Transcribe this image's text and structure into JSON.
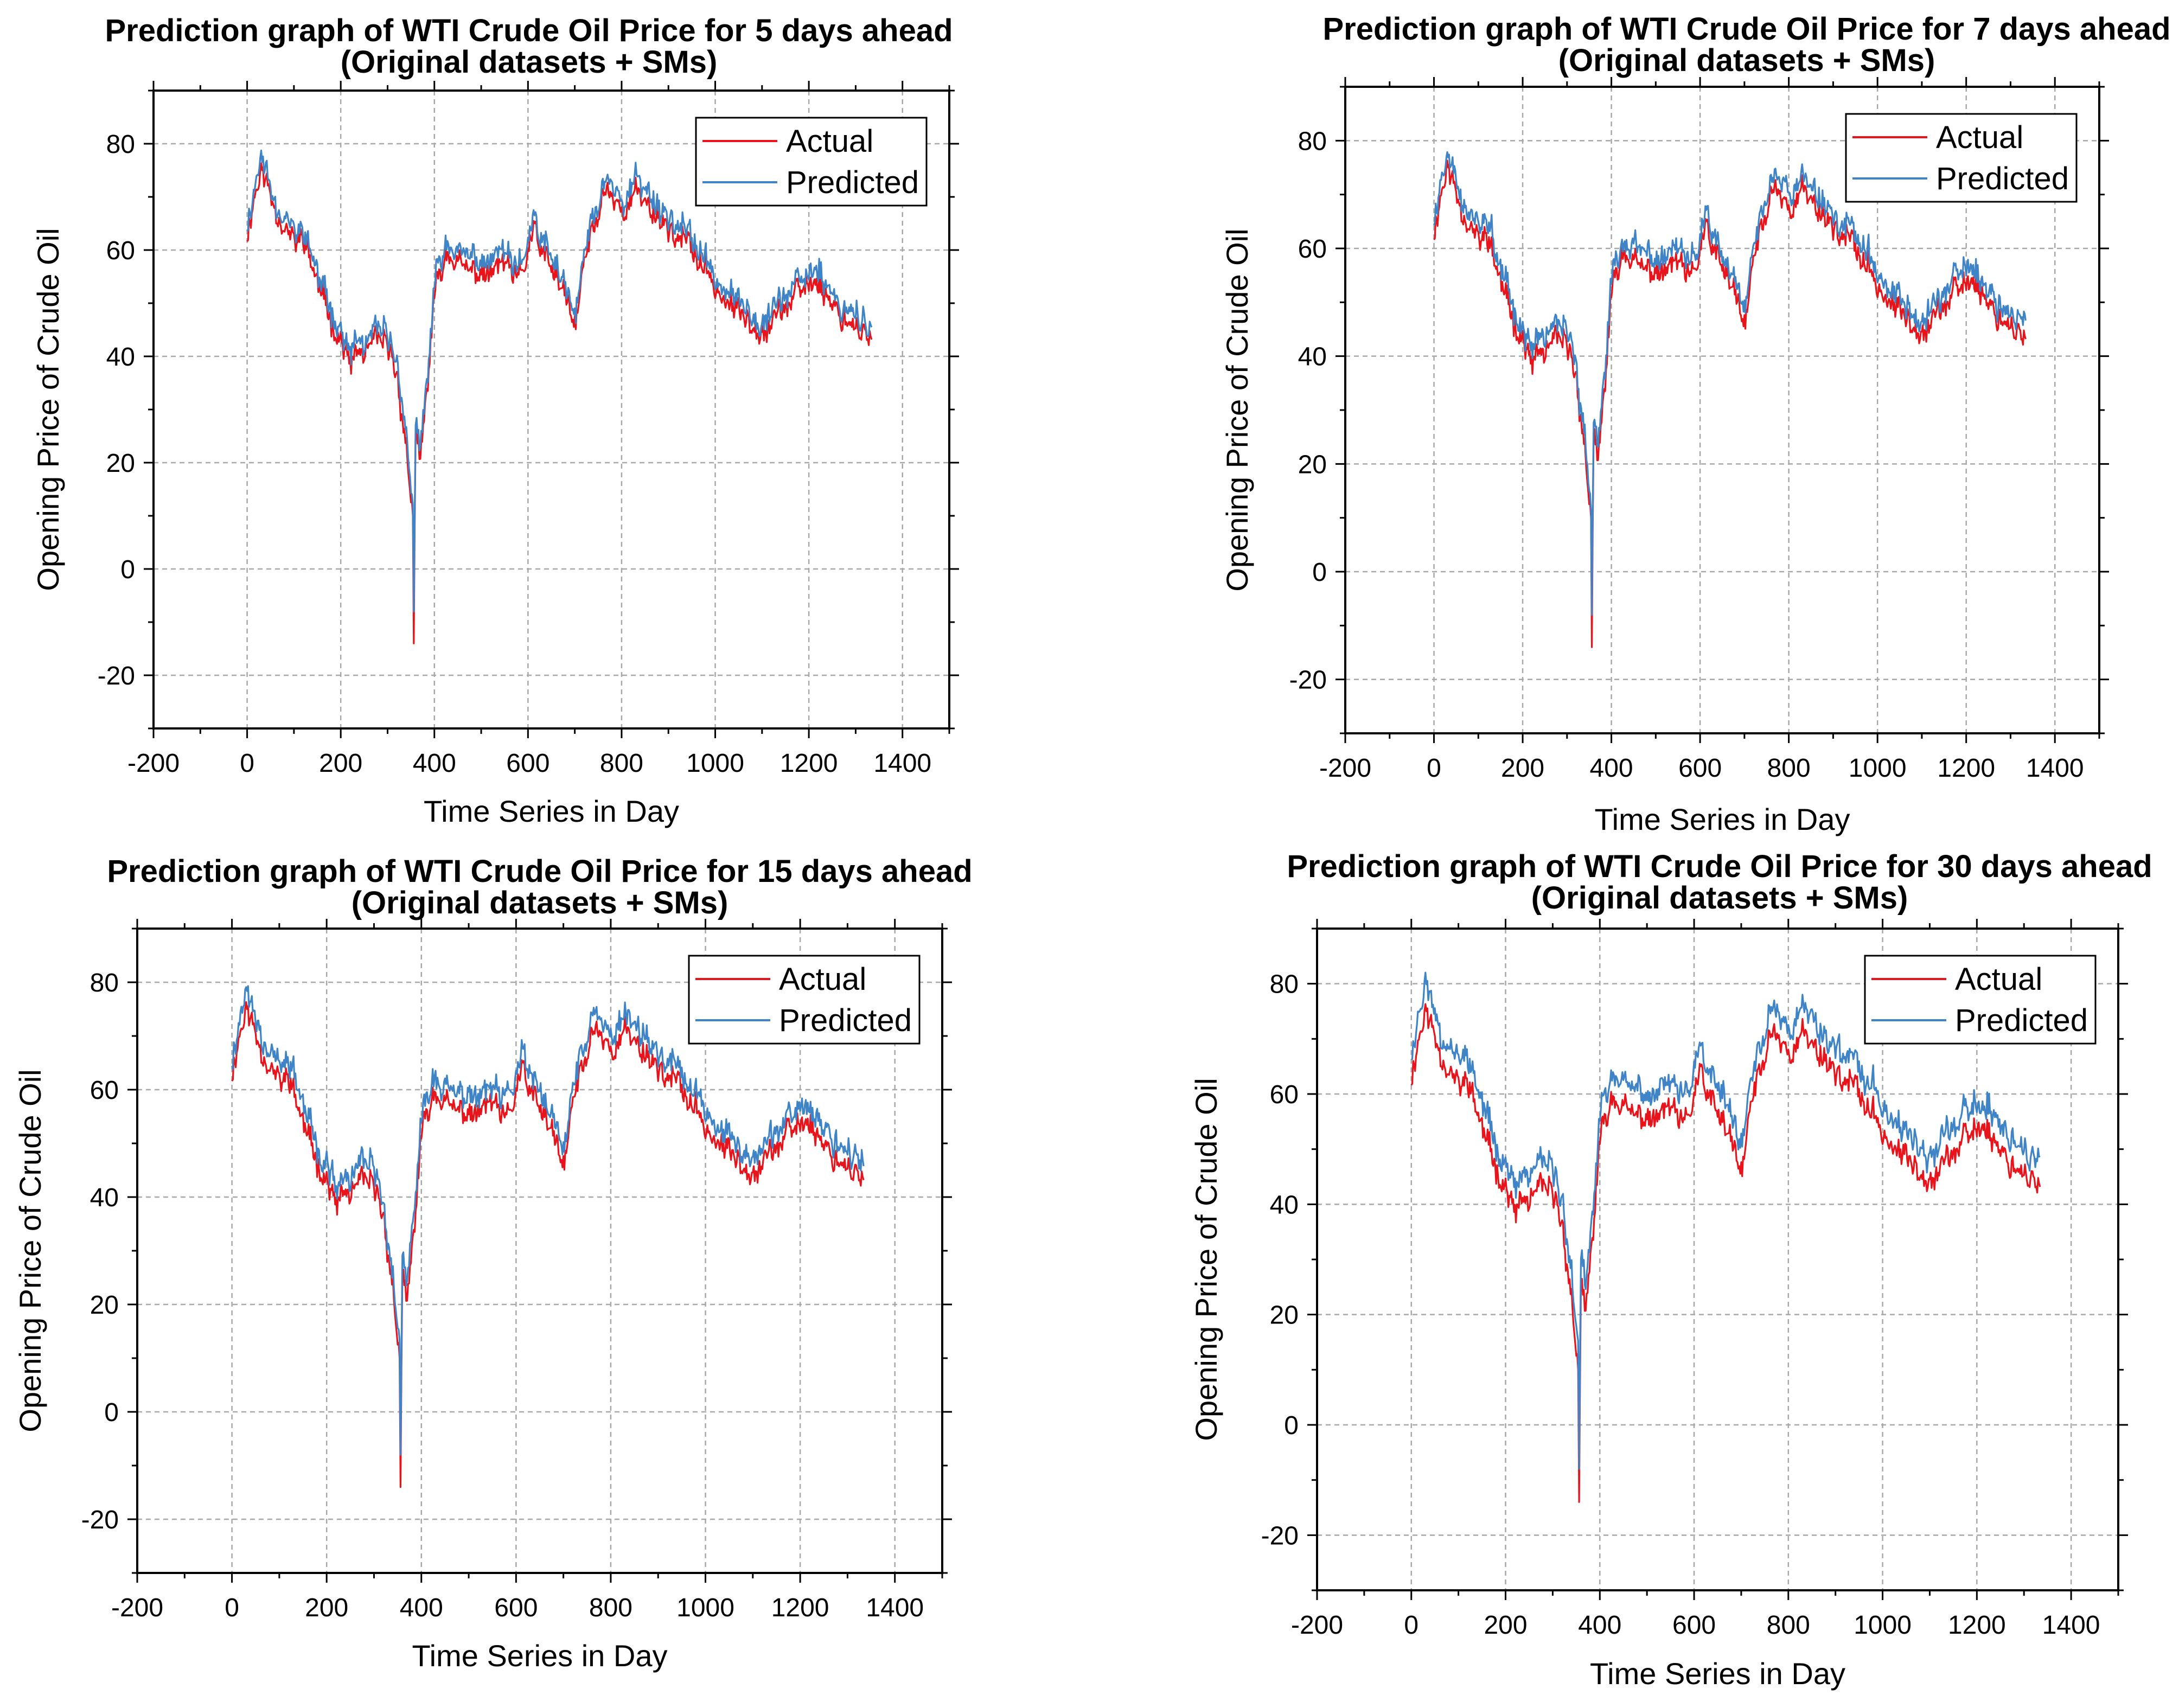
{
  "figure": "WTI crude oil price prediction results, four horizons",
  "colors": {
    "actual": "#e8141c",
    "predicted": "#3f84c6",
    "grid": "#a8a8a8",
    "axis": "#000000"
  },
  "chart_data": [
    {
      "type": "line",
      "title": "Prediction graph of WTI Crude Oil Price for 5 days ahead",
      "subtitle": "(Original datasets + SMs)",
      "xlabel": "Time Series in Day",
      "ylabel": "Opening Price of Crude Oil",
      "xlim": [
        -200,
        1500
      ],
      "ylim": [
        -30,
        90
      ],
      "xticks": [
        -200,
        0,
        200,
        400,
        600,
        800,
        1000,
        1200,
        1400
      ],
      "yticks": [
        -20,
        0,
        20,
        40,
        60,
        80
      ],
      "xtick_labels": [
        "-200",
        "0",
        "200",
        "400",
        "600",
        "800",
        "1000",
        "1200",
        "1400"
      ],
      "ytick_labels": [
        "-20",
        "0",
        "20",
        "40",
        "60",
        "80"
      ],
      "grid": true,
      "legend_position": "top-right",
      "series": [
        {
          "name": "Actual",
          "color": "#e8141c"
        },
        {
          "name": "Predicted",
          "color": "#3f84c6",
          "offset": 2.0,
          "seed": 5
        }
      ]
    },
    {
      "type": "line",
      "title": "Prediction graph of WTI Crude Oil Price for 7 days ahead",
      "subtitle": "(Original datasets + SMs)",
      "xlabel": "Time Series in Day",
      "ylabel": "Opening Price of Crude Oil",
      "xlim": [
        -200,
        1500
      ],
      "ylim": [
        -30,
        90
      ],
      "xticks": [
        -200,
        0,
        200,
        400,
        600,
        800,
        1000,
        1200,
        1400
      ],
      "yticks": [
        -20,
        0,
        20,
        40,
        60,
        80
      ],
      "xtick_labels": [
        "-200",
        "0",
        "200",
        "400",
        "600",
        "800",
        "1000",
        "1200",
        "1400"
      ],
      "ytick_labels": [
        "-20",
        "0",
        "20",
        "40",
        "60",
        "80"
      ],
      "grid": true,
      "legend_position": "top-right",
      "series": [
        {
          "name": "Actual",
          "color": "#e8141c"
        },
        {
          "name": "Predicted",
          "color": "#3f84c6",
          "offset": 2.5,
          "seed": 7
        }
      ]
    },
    {
      "type": "line",
      "title": "Prediction graph of WTI Crude Oil Price for 15 days ahead",
      "subtitle": "(Original datasets + SMs)",
      "xlabel": "Time Series in Day",
      "ylabel": "Opening Price of Crude Oil",
      "xlim": [
        -200,
        1500
      ],
      "ylim": [
        -30,
        90
      ],
      "xticks": [
        -200,
        0,
        200,
        400,
        600,
        800,
        1000,
        1200,
        1400
      ],
      "yticks": [
        -20,
        0,
        20,
        40,
        60,
        80
      ],
      "xtick_labels": [
        "-200",
        "0",
        "200",
        "400",
        "600",
        "800",
        "1000",
        "1200",
        "1400"
      ],
      "ytick_labels": [
        "-20",
        "0",
        "20",
        "40",
        "60",
        "80"
      ],
      "grid": true,
      "legend_position": "top-right",
      "series": [
        {
          "name": "Actual",
          "color": "#e8141c"
        },
        {
          "name": "Predicted",
          "color": "#3f84c6",
          "offset": 3.0,
          "seed": 15
        }
      ]
    },
    {
      "type": "line",
      "title": "Prediction graph of WTI Crude Oil Price for 30 days ahead",
      "subtitle": "(Original datasets + SMs)",
      "xlabel": "Time Series in Day",
      "ylabel": "Opening Price of Crude Oil",
      "xlim": [
        -200,
        1500
      ],
      "ylim": [
        -30,
        90
      ],
      "xticks": [
        -200,
        0,
        200,
        400,
        600,
        800,
        1000,
        1200,
        1400
      ],
      "yticks": [
        -20,
        0,
        20,
        40,
        60,
        80
      ],
      "xtick_labels": [
        "-200",
        "0",
        "200",
        "400",
        "600",
        "800",
        "1000",
        "1200",
        "1400"
      ],
      "ytick_labels": [
        "-20",
        "0",
        "20",
        "40",
        "60",
        "80"
      ],
      "grid": true,
      "legend_position": "top-right",
      "series": [
        {
          "name": "Actual",
          "color": "#e8141c"
        },
        {
          "name": "Predicted",
          "color": "#3f84c6",
          "offset": 4.5,
          "seed": 30
        }
      ]
    }
  ],
  "actual_profile": {
    "x_range": [
      0,
      1335
    ],
    "anchors": [
      [
        0,
        63
      ],
      [
        15,
        70
      ],
      [
        30,
        75
      ],
      [
        45,
        72
      ],
      [
        60,
        68
      ],
      [
        75,
        65
      ],
      [
        90,
        63
      ],
      [
        105,
        61
      ],
      [
        120,
        63
      ],
      [
        135,
        58
      ],
      [
        150,
        54
      ],
      [
        165,
        50
      ],
      [
        180,
        47
      ],
      [
        195,
        44
      ],
      [
        210,
        41
      ],
      [
        220,
        38
      ],
      [
        230,
        40
      ],
      [
        240,
        41
      ],
      [
        250,
        40
      ],
      [
        265,
        42
      ],
      [
        280,
        43
      ],
      [
        295,
        42
      ],
      [
        310,
        40
      ],
      [
        320,
        36
      ],
      [
        330,
        30
      ],
      [
        338,
        24
      ],
      [
        343,
        20
      ],
      [
        348,
        15
      ],
      [
        352,
        13
      ],
      [
        355,
        18
      ],
      [
        360,
        24
      ],
      [
        365,
        22
      ],
      [
        370,
        20
      ],
      [
        375,
        25
      ],
      [
        385,
        34
      ],
      [
        393,
        44
      ],
      [
        400,
        51
      ],
      [
        410,
        55
      ],
      [
        420,
        58
      ],
      [
        430,
        60
      ],
      [
        440,
        59
      ],
      [
        455,
        57
      ],
      [
        470,
        56
      ],
      [
        490,
        56
      ],
      [
        510,
        55
      ],
      [
        530,
        56
      ],
      [
        545,
        58
      ],
      [
        560,
        56
      ],
      [
        575,
        54
      ],
      [
        590,
        56
      ],
      [
        605,
        62
      ],
      [
        615,
        64
      ],
      [
        625,
        60
      ],
      [
        640,
        58
      ],
      [
        655,
        56
      ],
      [
        670,
        53
      ],
      [
        685,
        50
      ],
      [
        697,
        45
      ],
      [
        705,
        48
      ],
      [
        720,
        58
      ],
      [
        735,
        63
      ],
      [
        750,
        66
      ],
      [
        760,
        71
      ],
      [
        770,
        72
      ],
      [
        785,
        69
      ],
      [
        800,
        68
      ],
      [
        815,
        68
      ],
      [
        830,
        71
      ],
      [
        845,
        70
      ],
      [
        860,
        68
      ],
      [
        875,
        67
      ],
      [
        890,
        65
      ],
      [
        905,
        64
      ],
      [
        920,
        62
      ],
      [
        935,
        62
      ],
      [
        950,
        60
      ],
      [
        965,
        58
      ],
      [
        980,
        56
      ],
      [
        995,
        54
      ],
      [
        1010,
        52
      ],
      [
        1025,
        50
      ],
      [
        1040,
        49
      ],
      [
        1055,
        48
      ],
      [
        1070,
        47
      ],
      [
        1085,
        46
      ],
      [
        1100,
        45
      ],
      [
        1115,
        46
      ],
      [
        1130,
        48
      ],
      [
        1145,
        49
      ],
      [
        1160,
        50
      ],
      [
        1175,
        52
      ],
      [
        1190,
        53
      ],
      [
        1205,
        54
      ],
      [
        1220,
        54
      ],
      [
        1235,
        52
      ],
      [
        1250,
        50
      ],
      [
        1265,
        48
      ],
      [
        1280,
        47
      ],
      [
        1295,
        46
      ],
      [
        1310,
        45
      ],
      [
        1320,
        44
      ],
      [
        1330,
        43
      ],
      [
        1335,
        41
      ]
    ],
    "dip": {
      "x": 355,
      "min": -14
    },
    "noise_amplitude": 3.2,
    "seed": 11
  }
}
